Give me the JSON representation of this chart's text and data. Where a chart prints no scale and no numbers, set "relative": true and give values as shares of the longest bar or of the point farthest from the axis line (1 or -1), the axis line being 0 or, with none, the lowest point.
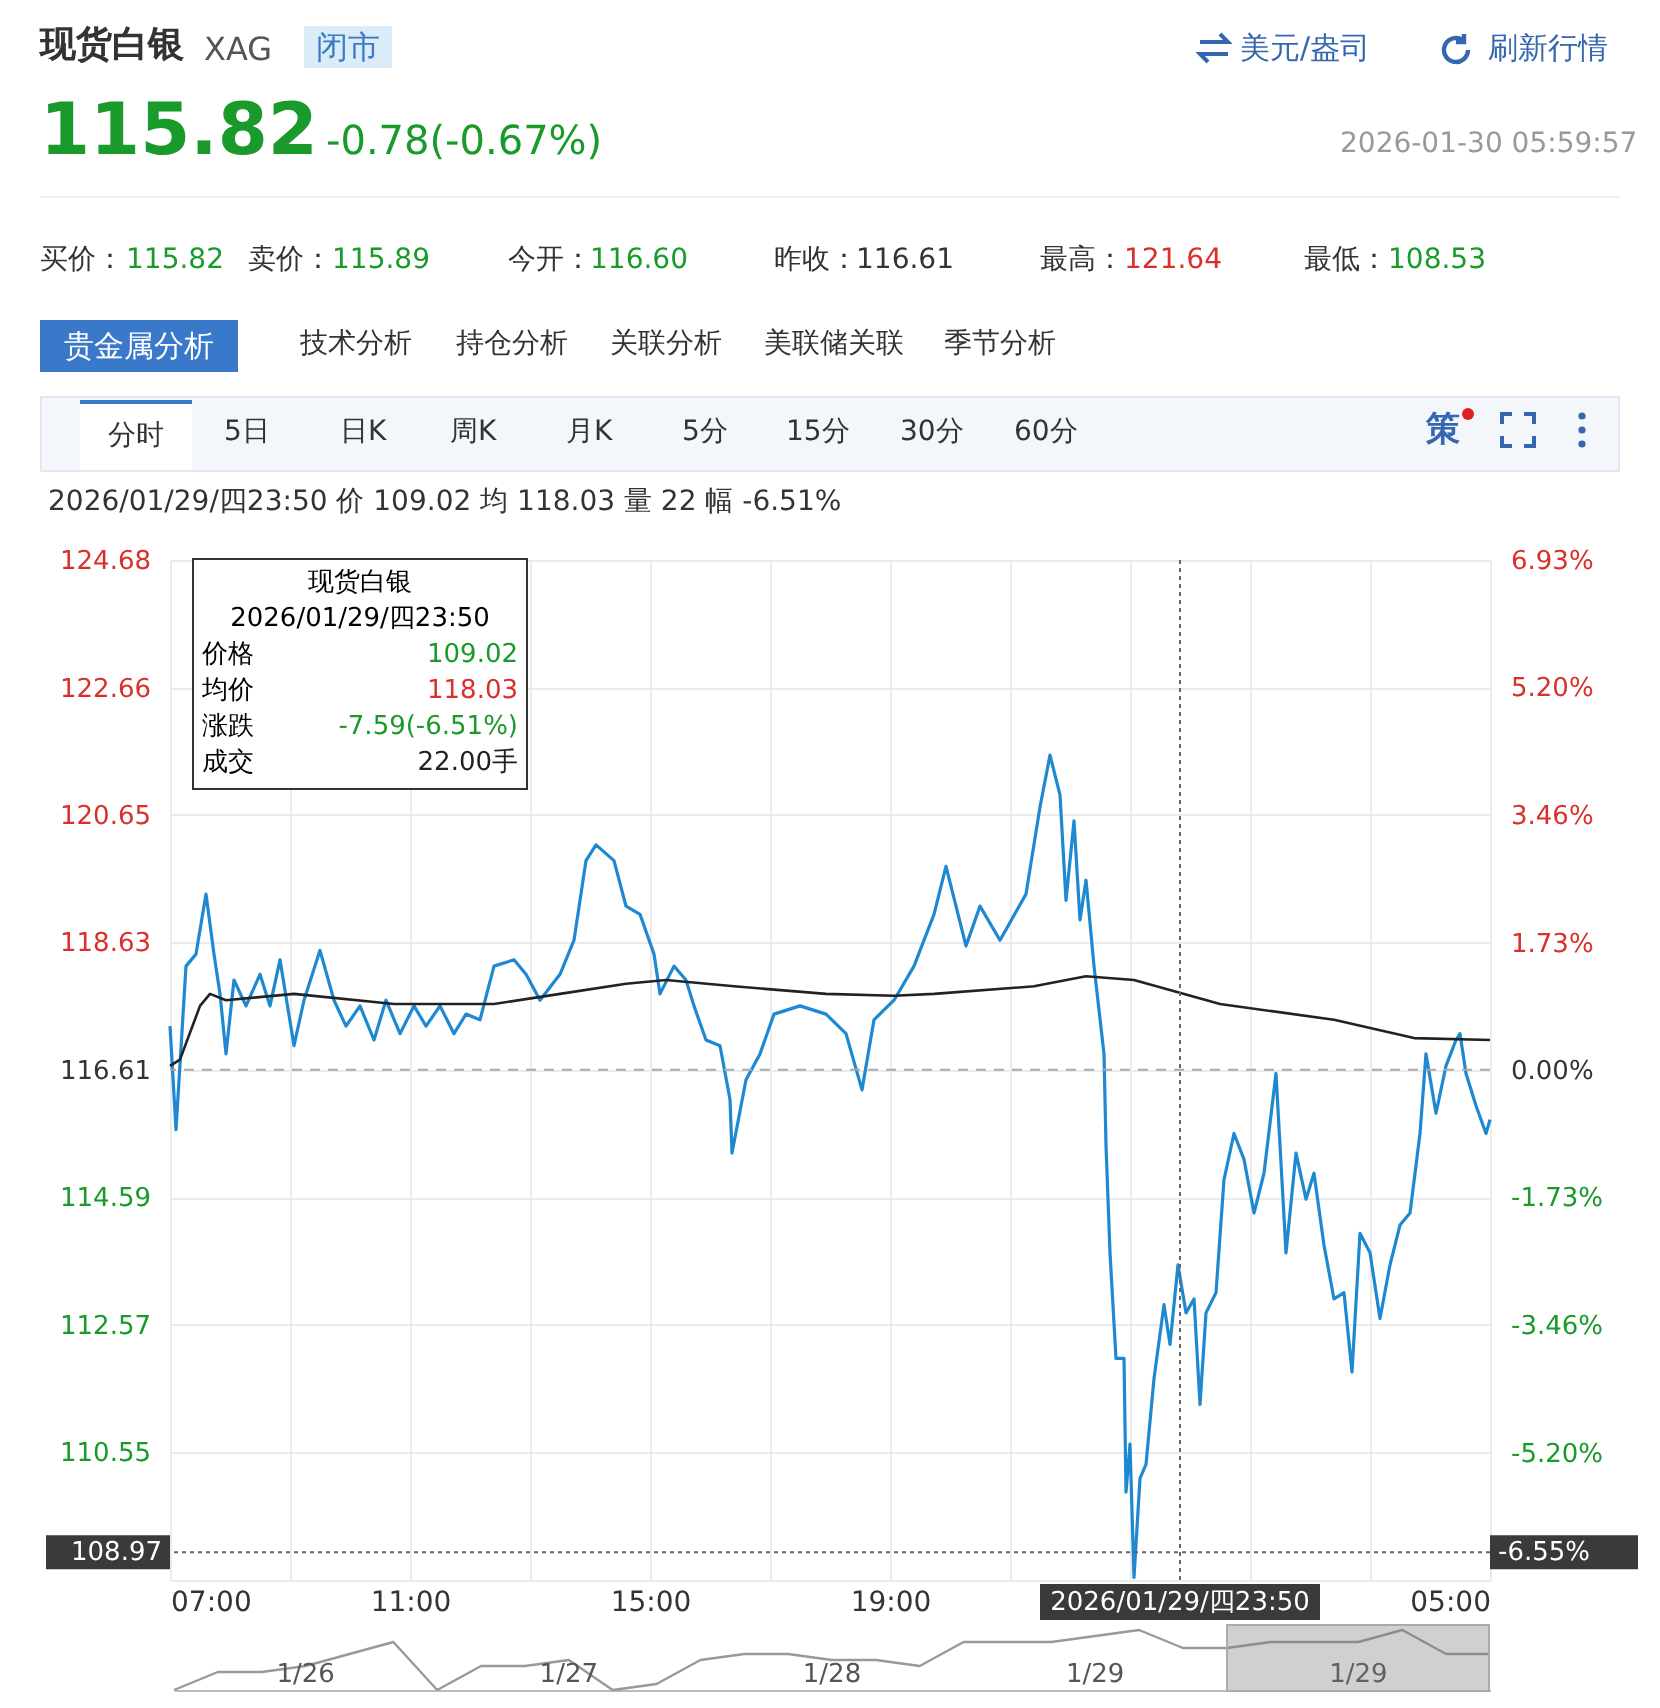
{
  "chart_data": [
    {
      "type": "other",
      "annotations": [
        "现货白银",
        "XAG",
        "闭市",
        "美元/盎司",
        "刷新行情",
        "115.82",
        "-0.78(-0.67%)",
        "2026-01-30 05:59:57",
        "买价：",
        "115.82",
        "卖价：",
        "115.89",
        "今开：",
        "116.60",
        "昨收：",
        "116.61",
        "最高：",
        "121.64",
        "最低：",
        "108.53",
        "贵金属分析",
        "技术分析",
        "持仓分析",
        "关联分析",
        "美联储关联",
        "季节分析",
        "分时",
        "5日",
        "日K",
        "周K",
        "月K",
        "5分",
        "15分",
        "30分",
        "60分",
        "策"
      ]
    },
    {
      "type": "line",
      "subtitle": "2026/01/29/四23:50  价 109.02  均 118.03  量 22  幅 -6.51%",
      "annotations": [
        "现货白银",
        "2026/01/29/四23:50",
        "价格",
        "109.02",
        "均价",
        "118.03",
        "涨跌",
        "-7.59(-6.51%)",
        "成交",
        "22.00手",
        "-6.55%"
      ],
      "series": [
        {
          "color": "#1e88d0",
          "x": [
            "2026-01-29T07:00",
            "2026-01-29T07:06",
            "2026-01-29T07:16",
            "2026-01-29T07:26",
            "2026-01-29T07:36",
            "2026-01-29T07:44",
            "2026-01-29T07:50",
            "2026-01-29T07:56",
            "2026-01-29T08:04",
            "2026-01-29T08:16",
            "2026-01-29T08:30",
            "2026-01-29T08:40",
            "2026-01-29T08:50",
            "2026-01-29T09:04",
            "2026-01-29T09:14",
            "2026-01-29T09:30",
            "2026-01-29T09:44",
            "2026-01-29T09:56",
            "2026-01-29T10:10",
            "2026-01-29T10:24",
            "2026-01-29T10:36",
            "2026-01-29T10:50",
            "2026-01-29T11:04",
            "2026-01-29T11:16",
            "2026-01-29T11:30",
            "2026-01-29T11:44",
            "2026-01-29T11:56",
            "2026-01-29T12:10",
            "2026-01-29T12:24",
            "2026-01-29T12:44",
            "2026-01-29T12:56",
            "2026-01-29T13:10",
            "2026-01-29T13:30",
            "2026-01-29T13:44",
            "2026-01-29T13:56",
            "2026-01-29T14:06",
            "2026-01-29T14:24",
            "2026-01-29T14:36",
            "2026-01-29T14:50",
            "2026-01-29T15:04",
            "2026-01-29T15:10",
            "2026-01-29T15:24",
            "2026-01-29T15:36",
            "2026-01-29T15:44",
            "2026-01-29T15:56",
            "2026-01-29T16:10",
            "2026-01-29T16:20",
            "2026-01-29T16:22",
            "2026-01-29T16:36",
            "2026-01-29T16:50",
            "2026-01-29T17:04",
            "2026-01-29T17:30",
            "2026-01-29T17:56",
            "2026-01-29T18:16",
            "2026-01-29T18:32",
            "2026-01-29T18:44",
            "2026-01-29T19:04",
            "2026-01-29T19:24",
            "2026-01-29T19:44",
            "2026-01-29T19:56",
            "2026-01-29T20:16",
            "2026-01-29T20:30",
            "2026-01-29T20:50",
            "2026-01-29T21:16",
            "2026-01-29T21:30",
            "2026-01-29T21:40",
            "2026-01-29T21:50",
            "2026-01-29T21:56",
            "2026-01-29T22:04",
            "2026-01-29T22:10",
            "2026-01-29T22:16",
            "2026-01-29T22:24",
            "2026-01-29T22:34",
            "2026-01-29T22:36",
            "2026-01-29T22:40",
            "2026-01-29T22:46",
            "2026-01-29T22:54",
            "2026-01-29T22:56",
            "2026-01-29T23:00",
            "2026-01-29T23:04",
            "2026-01-29T23:10",
            "2026-01-29T23:16",
            "2026-01-29T23:24",
            "2026-01-29T23:34",
            "2026-01-29T23:40",
            "2026-01-29T23:48",
            "2026-01-29T23:56",
            "2026-01-30T00:04",
            "2026-01-30T00:10",
            "2026-01-30T00:16",
            "2026-01-30T00:26",
            "2026-01-30T00:34",
            "2026-01-30T00:44",
            "2026-01-30T00:54",
            "2026-01-30T01:04",
            "2026-01-30T01:14",
            "2026-01-30T01:26",
            "2026-01-30T01:36",
            "2026-01-30T01:46",
            "2026-01-30T01:56",
            "2026-01-30T02:04",
            "2026-01-30T02:14",
            "2026-01-30T02:24",
            "2026-01-30T02:34",
            "2026-01-30T02:42",
            "2026-01-30T02:50",
            "2026-01-30T03:00",
            "2026-01-30T03:10",
            "2026-01-30T03:20",
            "2026-01-30T03:30",
            "2026-01-30T03:40",
            "2026-01-30T03:50",
            "2026-01-30T03:56",
            "2026-01-30T04:06",
            "2026-01-30T04:16",
            "2026-01-30T04:26",
            "2026-01-30T04:30",
            "2026-01-30T04:36",
            "2026-01-30T04:46",
            "2026-01-30T04:56",
            "2026-01-30T05:00"
          ],
          "values": [
            117.3,
            115.66,
            118.25,
            118.44,
            119.39,
            118.44,
            117.81,
            116.86,
            118.03,
            117.62,
            118.12,
            117.62,
            118.35,
            116.99,
            117.71,
            118.5,
            117.71,
            117.3,
            117.62,
            117.08,
            117.71,
            117.18,
            117.62,
            117.3,
            117.62,
            117.18,
            117.49,
            117.4,
            118.25,
            118.35,
            118.12,
            117.71,
            118.12,
            118.66,
            119.92,
            120.17,
            119.92,
            119.2,
            119.07,
            118.44,
            117.81,
            118.25,
            118.03,
            117.62,
            117.08,
            116.99,
            116.14,
            115.29,
            116.45,
            116.86,
            117.49,
            117.62,
            117.49,
            117.18,
            116.29,
            117.4,
            117.71,
            118.25,
            119.07,
            119.83,
            118.57,
            119.2,
            118.66,
            119.39,
            120.77,
            121.59,
            120.96,
            119.29,
            120.55,
            118.98,
            119.61,
            118.25,
            116.86,
            115.41,
            113.71,
            112.04,
            112.04,
            109.92,
            110.68,
            108.57,
            110.14,
            110.36,
            111.72,
            112.89,
            112.26,
            113.52,
            112.76,
            112.98,
            111.31,
            112.76,
            113.08,
            114.87,
            115.6,
            115.19,
            114.34,
            114.97,
            116.55,
            113.71,
            115.29,
            114.56,
            114.97,
            113.83,
            112.98,
            113.08,
            111.82,
            114.02,
            113.71,
            112.67,
            113.52,
            114.15,
            114.34,
            115.6,
            116.86,
            115.92,
            116.67,
            117.08,
            117.18,
            116.55,
            116.04,
            115.6,
            115.82
          ]
        },
        {
          "color": "#222222",
          "x": [
            "2026-01-29T07:00",
            "2026-01-29T07:10",
            "2026-01-29T07:30",
            "2026-01-29T07:40",
            "2026-01-29T07:56",
            "2026-01-29T09:04",
            "2026-01-29T10:44",
            "2026-01-29T12:24",
            "2026-01-29T13:30",
            "2026-01-29T14:36",
            "2026-01-29T15:16",
            "2026-01-29T16:24",
            "2026-01-29T17:56",
            "2026-01-29T19:04",
            "2026-01-29T19:44",
            "2026-01-29T21:24",
            "2026-01-29T22:16",
            "2026-01-29T23:04",
            "2026-01-30T00:30",
            "2026-01-30T02:24",
            "2026-01-30T03:44",
            "2026-01-30T05:00"
          ],
          "values": [
            116.67,
            116.77,
            117.62,
            117.81,
            117.71,
            117.81,
            117.65,
            117.65,
            117.81,
            117.97,
            118.03,
            117.93,
            117.81,
            117.78,
            117.81,
            117.93,
            118.09,
            118.03,
            117.65,
            117.4,
            117.11,
            117.08
          ]
        }
      ],
      "xlim": [
        "2026-01-29T07:00",
        "2026-01-30T05:00"
      ],
      "xticks": [
        {
          "value": "2026-01-29T07:00",
          "label": "07:00"
        },
        {
          "value": "2026-01-29T09:00",
          "label": null
        },
        {
          "value": "2026-01-29T11:00",
          "label": "11:00"
        },
        {
          "value": "2026-01-29T13:00",
          "label": null
        },
        {
          "value": "2026-01-29T15:00",
          "label": "15:00"
        },
        {
          "value": "2026-01-29T17:00",
          "label": null
        },
        {
          "value": "2026-01-29T19:00",
          "label": "19:00"
        },
        {
          "value": "2026-01-29T21:00",
          "label": null
        },
        {
          "value": "2026-01-29T23:00",
          "label": null
        },
        {
          "value": "2026-01-30T01:00",
          "label": null
        },
        {
          "value": "2026-01-30T03:00",
          "label": null
        },
        {
          "value": "2026-01-30T05:00",
          "label": "05:00"
        }
      ],
      "ylim": [
        108.53,
        124.68
      ],
      "yticks": [
        {
          "value": 108.53,
          "label": null
        },
        110.55,
        112.57,
        114.59,
        116.61,
        118.63,
        120.65,
        122.66,
        124.68
      ],
      "y2lim": [
        -6.93,
        6.93
      ],
      "y2ticks": [
        {
          "value": -6.93,
          "label": null
        },
        {
          "value": -5.2,
          "label": "-5.20%"
        },
        {
          "value": -3.46,
          "label": "-3.46%"
        },
        {
          "value": -1.73,
          "label": "-1.73%"
        },
        {
          "value": 0,
          "label": "0.00%"
        },
        {
          "value": 1.73,
          "label": "1.73%"
        },
        {
          "value": 3.46,
          "label": "3.46%"
        },
        {
          "value": 5.2,
          "label": "5.20%"
        },
        {
          "value": 6.93,
          "label": "6.93%"
        }
      ],
      "ref_lines": [
        {
          "axis": "y",
          "value": 116.61,
          "color": "#aaaaaa",
          "line_style": "dashed"
        },
        {
          "axis": "x",
          "value": "2026-01-29T23:50",
          "label": "2026/01/29/四23:50",
          "color": "#666666",
          "line_style": "dotted"
        },
        {
          "axis": "y",
          "value": 108.97,
          "label": "108.97",
          "color": "#666666",
          "line_style": "dotted"
        }
      ],
      "grid": true
    },
    {
      "type": "line",
      "relative": true,
      "categories": [
        null,
        null,
        null,
        null,
        null,
        null,
        null,
        null,
        null,
        null,
        null,
        null,
        null,
        null,
        null,
        null,
        null,
        null,
        null,
        null,
        null,
        null,
        null,
        null,
        null,
        null,
        null,
        null,
        null,
        null,
        null
      ],
      "series": [
        {
          "color": "#999999",
          "values": [
            0,
            0.3,
            0.3,
            0.4,
            0.6,
            0.8,
            0,
            0.4,
            0.4,
            0.5,
            0,
            0.1,
            0.5,
            0.6,
            0.6,
            0.5,
            0.5,
            0.4,
            0.8,
            0.8,
            0.8,
            0.9,
            1,
            0.7,
            0.7,
            0.8,
            0.8,
            0.8,
            1,
            0.6,
            0.6
          ]
        }
      ],
      "annotations": [
        "1/26",
        "1/27",
        "1/28",
        "1/29",
        "1/29"
      ]
    }
  ]
}
